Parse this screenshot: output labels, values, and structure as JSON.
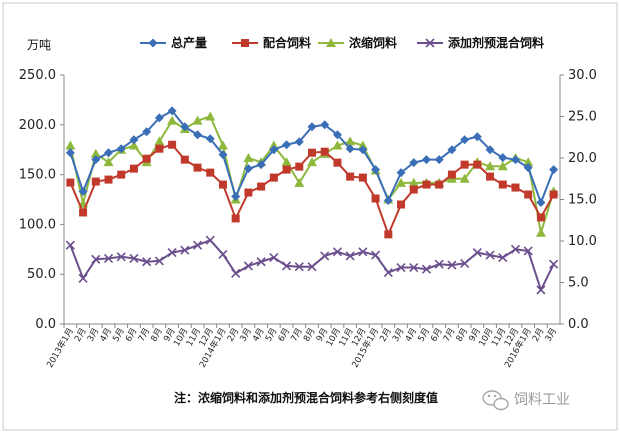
{
  "chart_data": {
    "type": "line",
    "y_unit_label": "万吨",
    "left_axis": {
      "ylim": [
        0,
        250
      ],
      "ticks": [
        "0.0",
        "50.0",
        "100.0",
        "150.0",
        "200.0",
        "250.0"
      ]
    },
    "right_axis": {
      "ylim": [
        0,
        30
      ],
      "ticks": [
        "0.0",
        "5.0",
        "10.0",
        "15.0",
        "20.0",
        "25.0",
        "30.0"
      ]
    },
    "grid": false,
    "legend_position": "top",
    "x_tick_labels": [
      "2013年1月",
      "2月",
      "3月",
      "4月",
      "5月",
      "6月",
      "7月",
      "8月",
      "9月",
      "10月",
      "11月",
      "12月",
      "2014年1月",
      "2月",
      "3月",
      "4月",
      "5月",
      "6月",
      "7月",
      "8月",
      "9月",
      "10月",
      "11月",
      "12月",
      "2015年1月",
      "2月",
      "3月",
      "4月",
      "5月",
      "6月",
      "7月",
      "8月",
      "9月",
      "10月",
      "11月",
      "12月",
      "2016年1月",
      "2月",
      "3月"
    ],
    "series": [
      {
        "name": "总产量",
        "axis": "left",
        "color": "#3a6fb7",
        "marker": "diamond",
        "values": [
          172,
          133,
          165,
          172,
          176,
          185,
          193,
          207,
          214,
          198,
          190,
          186,
          170,
          128,
          156,
          160,
          175,
          180,
          183,
          198,
          200,
          190,
          176,
          175,
          155,
          124,
          152,
          162,
          165,
          165,
          175,
          185,
          188,
          175,
          167,
          165,
          157,
          122,
          155
        ]
      },
      {
        "name": "配合饲料",
        "axis": "left",
        "color": "#c0392b",
        "marker": "square",
        "values": [
          142,
          112,
          143,
          145,
          150,
          156,
          166,
          176,
          180,
          165,
          157,
          152,
          140,
          106,
          132,
          138,
          147,
          155,
          158,
          172,
          173,
          162,
          148,
          147,
          126,
          90,
          120,
          135,
          140,
          140,
          150,
          160,
          160,
          148,
          140,
          137,
          130,
          107,
          130
        ]
      },
      {
        "name": "浓缩饲料",
        "axis": "right",
        "color": "#8db83c",
        "marker": "triangle",
        "values": [
          21.5,
          14.5,
          20.5,
          19.5,
          21,
          21.5,
          19.5,
          22,
          24.5,
          23.5,
          24.5,
          25,
          21.5,
          15,
          20,
          19.5,
          21.5,
          19.5,
          17,
          19.5,
          20.5,
          21.5,
          22,
          21.5,
          18.5,
          15,
          17,
          17,
          17,
          17,
          17.5,
          17.5,
          19.5,
          19,
          19,
          20,
          19.5,
          11,
          16
        ]
      },
      {
        "name": "添加剂预混合饲料",
        "axis": "right",
        "color": "#6b4f8c",
        "marker": "x",
        "values": [
          9.5,
          5.5,
          7.8,
          7.9,
          8.1,
          7.9,
          7.5,
          7.6,
          8.6,
          8.9,
          9.5,
          10.1,
          8.4,
          6.1,
          7.0,
          7.5,
          8.0,
          7.0,
          6.9,
          6.9,
          8.2,
          8.7,
          8.2,
          8.7,
          8.3,
          6.2,
          6.8,
          6.8,
          6.6,
          7.2,
          7.1,
          7.3,
          8.6,
          8.3,
          8.0,
          9.0,
          8.8,
          4.1,
          7.2
        ]
      }
    ]
  },
  "footnote": "注：浓缩饲料和添加剂预混合饲料参考右侧刻度值",
  "watermark": {
    "text": "饲料工业",
    "icon": "wechat-icon"
  }
}
